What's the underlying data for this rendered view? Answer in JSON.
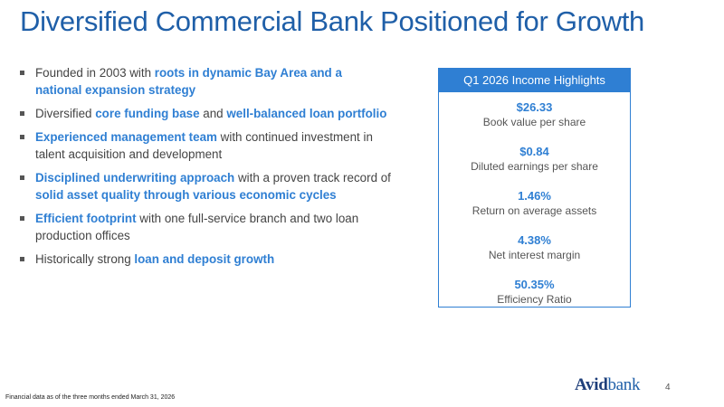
{
  "slide": {
    "title": "Diversified Commercial Bank Positioned for Growth",
    "footnote": "Financial data as of the three months ended March 31, 2026",
    "page_number": "4",
    "logo": {
      "part1": "Avid",
      "part2": "bank"
    }
  },
  "bullets": [
    {
      "segments": [
        {
          "text": "Founded in 2003 with ",
          "highlight": false
        },
        {
          "text": "roots in dynamic Bay Area and a national expansion strategy",
          "highlight": true
        }
      ]
    },
    {
      "segments": [
        {
          "text": "Diversified ",
          "highlight": false
        },
        {
          "text": "core funding base",
          "highlight": true
        },
        {
          "text": " and ",
          "highlight": false
        },
        {
          "text": "well-balanced loan portfolio",
          "highlight": true
        }
      ]
    },
    {
      "segments": [
        {
          "text": "Experienced management team",
          "highlight": true
        },
        {
          "text": " with continued investment in talent acquisition and development",
          "highlight": false
        }
      ]
    },
    {
      "segments": [
        {
          "text": "Disciplined underwriting approach",
          "highlight": true
        },
        {
          "text": " with a proven track record of ",
          "highlight": false
        },
        {
          "text": "solid asset quality through various economic cycles",
          "highlight": true
        }
      ]
    },
    {
      "segments": [
        {
          "text": "Efficient footprint",
          "highlight": true
        },
        {
          "text": " with one full-service branch and two loan production offices",
          "highlight": false
        }
      ]
    },
    {
      "segments": [
        {
          "text": "Historically strong ",
          "highlight": false
        },
        {
          "text": "loan and deposit growth",
          "highlight": true
        }
      ]
    }
  ],
  "highlights": {
    "header": "Q1 2026 Income Highlights",
    "metrics": [
      {
        "value": "$26.33",
        "label": "Book value per share"
      },
      {
        "value": "$0.84",
        "label": "Diluted earnings per share"
      },
      {
        "value": "1.46%",
        "label": "Return on average assets"
      },
      {
        "value": "4.38%",
        "label": "Net interest margin"
      },
      {
        "value": "50.35%",
        "label": "Efficiency Ratio"
      }
    ]
  }
}
